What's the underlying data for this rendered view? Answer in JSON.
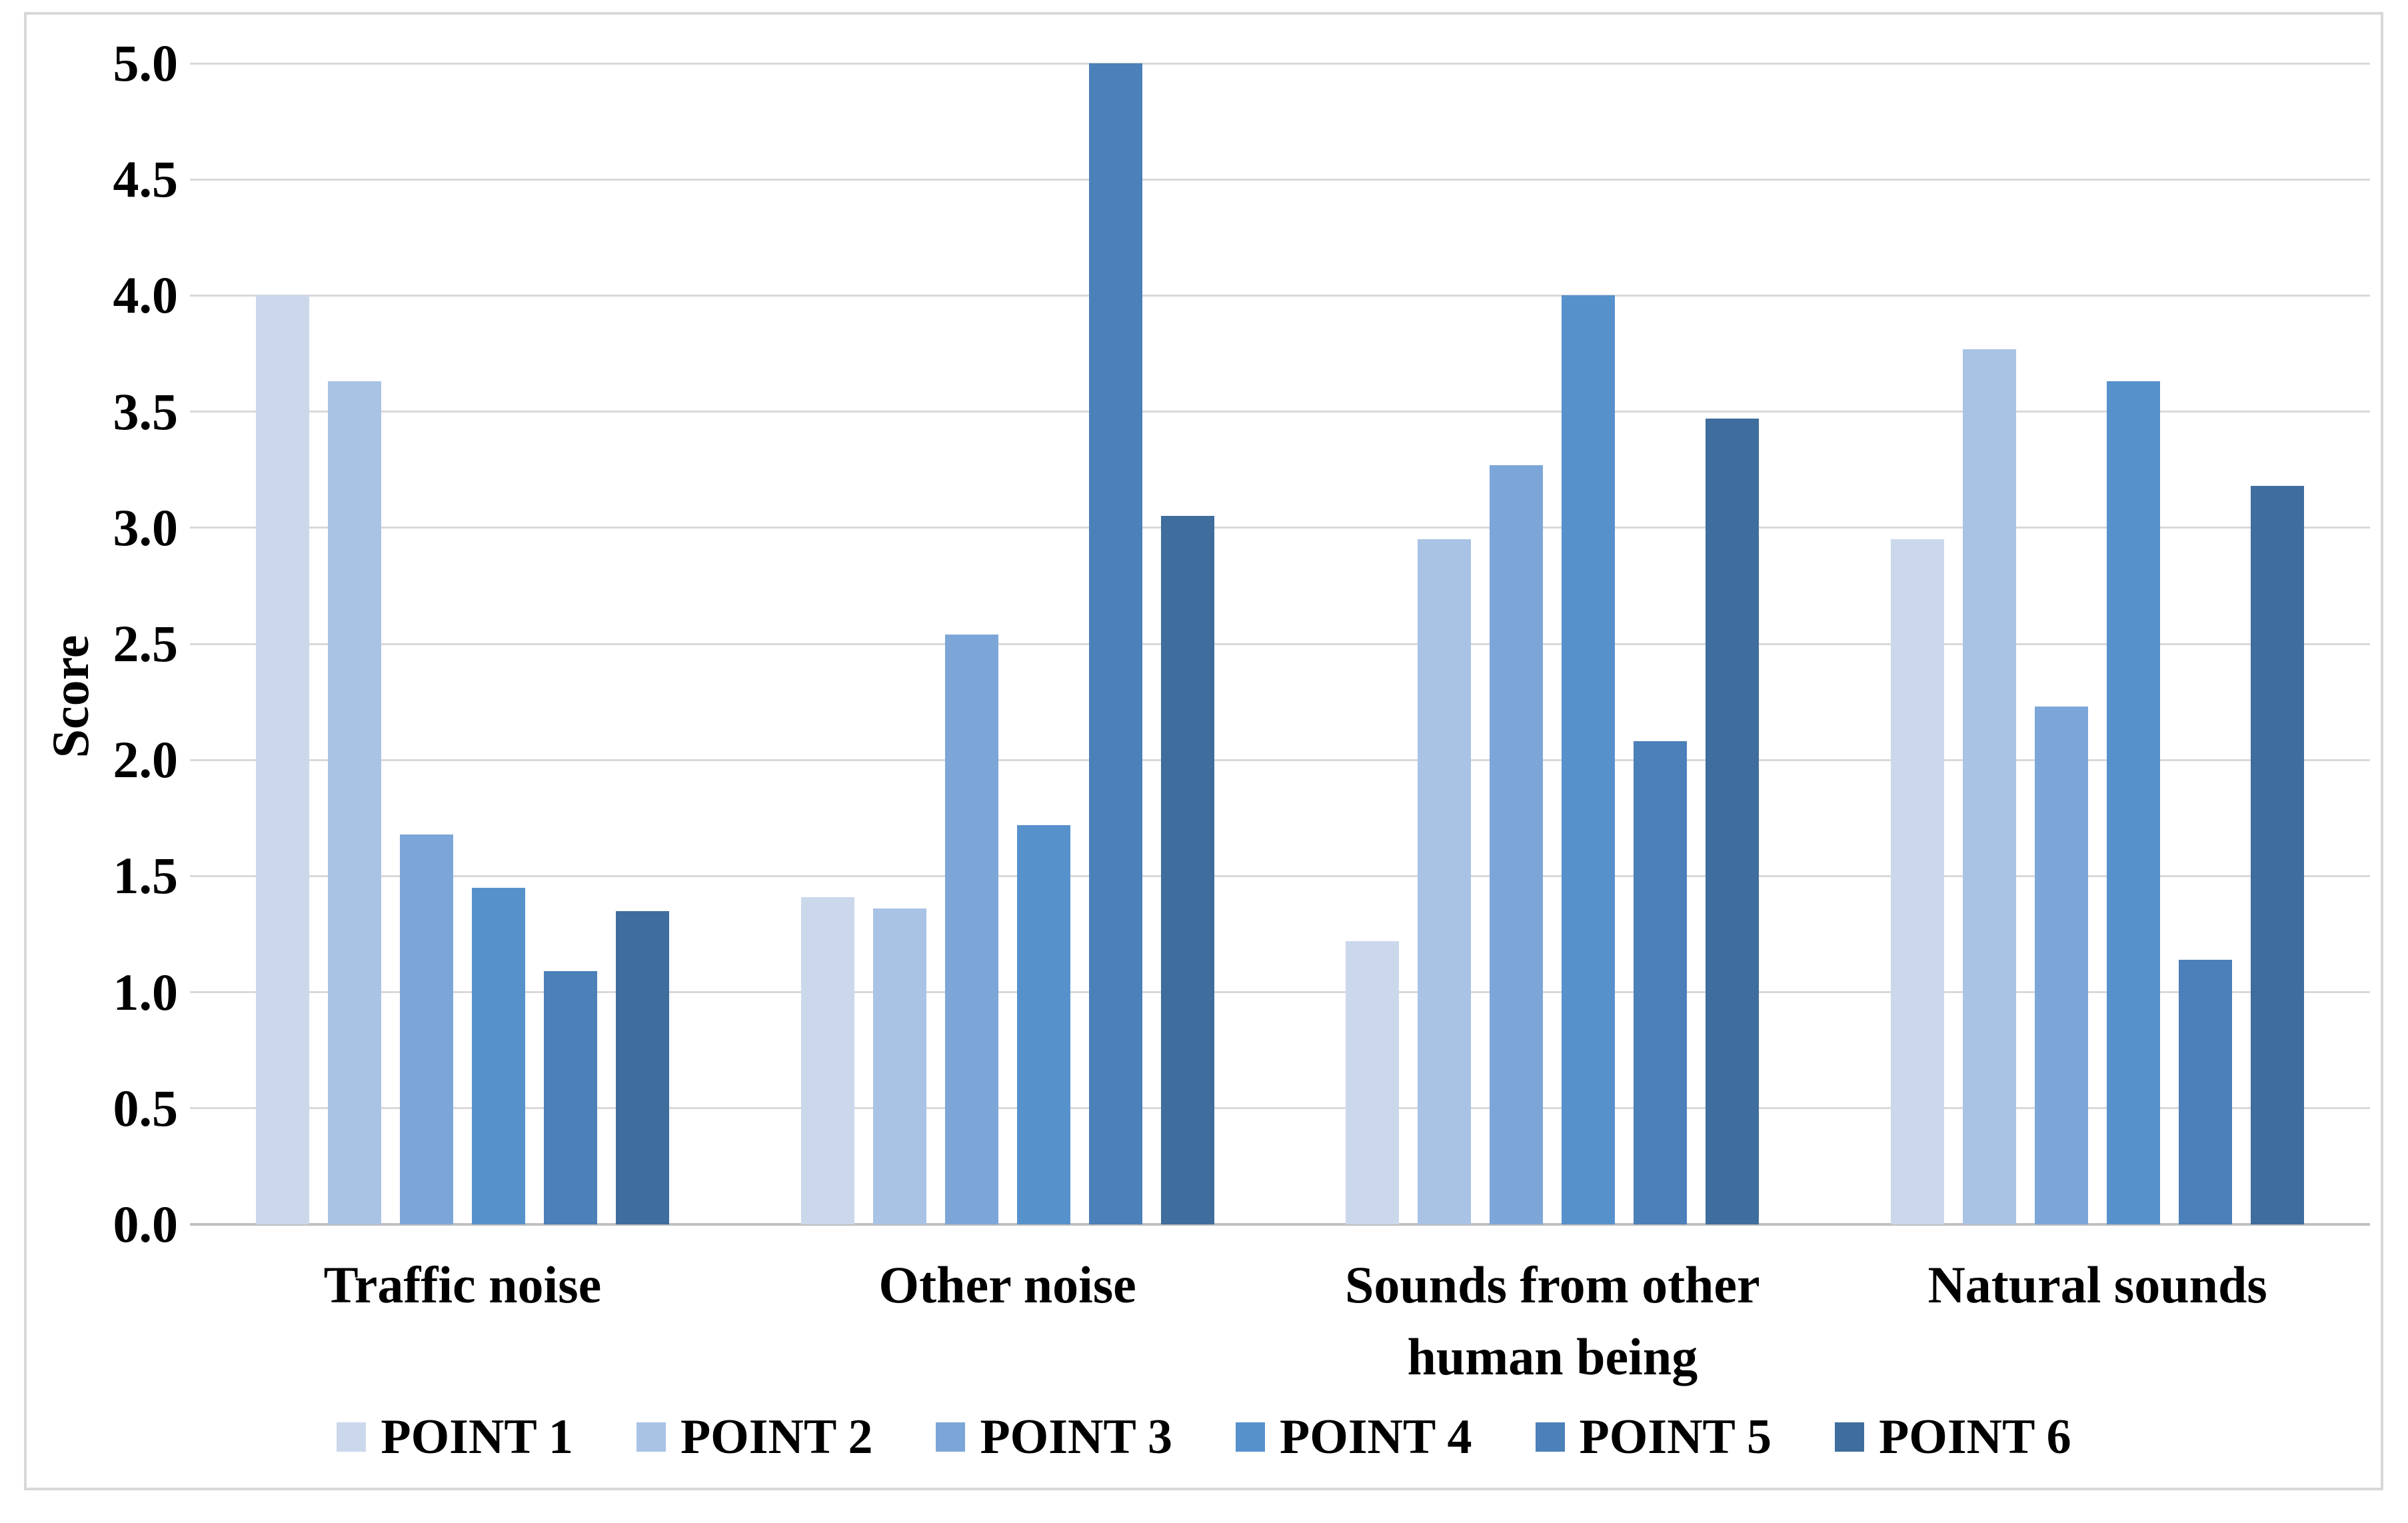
{
  "chart_data": {
    "type": "bar",
    "title": "",
    "ylabel": "Score",
    "xlabel": "",
    "ylim": [
      0,
      5
    ],
    "ytick_step": 0.5,
    "y_ticks": [
      "5.0",
      "4.5",
      "4.0",
      "3.5",
      "3.0",
      "2.5",
      "2.0",
      "1.5",
      "1.0",
      "0.5",
      "0.0"
    ],
    "grid": "horizontal",
    "legend_position": "bottom",
    "categories": [
      "Traffic noise",
      "Other noise",
      "Sounds from other human being",
      "Natural sounds"
    ],
    "series": [
      {
        "name": "POINT 1",
        "color": "#CBD8EC",
        "values": [
          4.0,
          1.41,
          1.22,
          2.95
        ]
      },
      {
        "name": "POINT 2",
        "color": "#A9C3E5",
        "values": [
          3.63,
          1.36,
          2.95,
          3.77
        ]
      },
      {
        "name": "POINT 3",
        "color": "#7DA6D8",
        "values": [
          1.68,
          2.54,
          3.27,
          2.23
        ]
      },
      {
        "name": "POINT 4",
        "color": "#5791CC",
        "values": [
          1.45,
          1.72,
          4.0,
          3.63
        ]
      },
      {
        "name": "POINT 5",
        "color": "#4B80B9",
        "values": [
          1.09,
          5.0,
          2.08,
          1.14
        ]
      },
      {
        "name": "POINT 6",
        "color": "#3F6D9D",
        "values": [
          1.35,
          3.05,
          3.47,
          3.18
        ]
      }
    ],
    "gridline_color": "#D9D9D9",
    "baseline_color": "#BFBFBF",
    "text_color": "#000000",
    "border_color": "#D8D8D8"
  }
}
